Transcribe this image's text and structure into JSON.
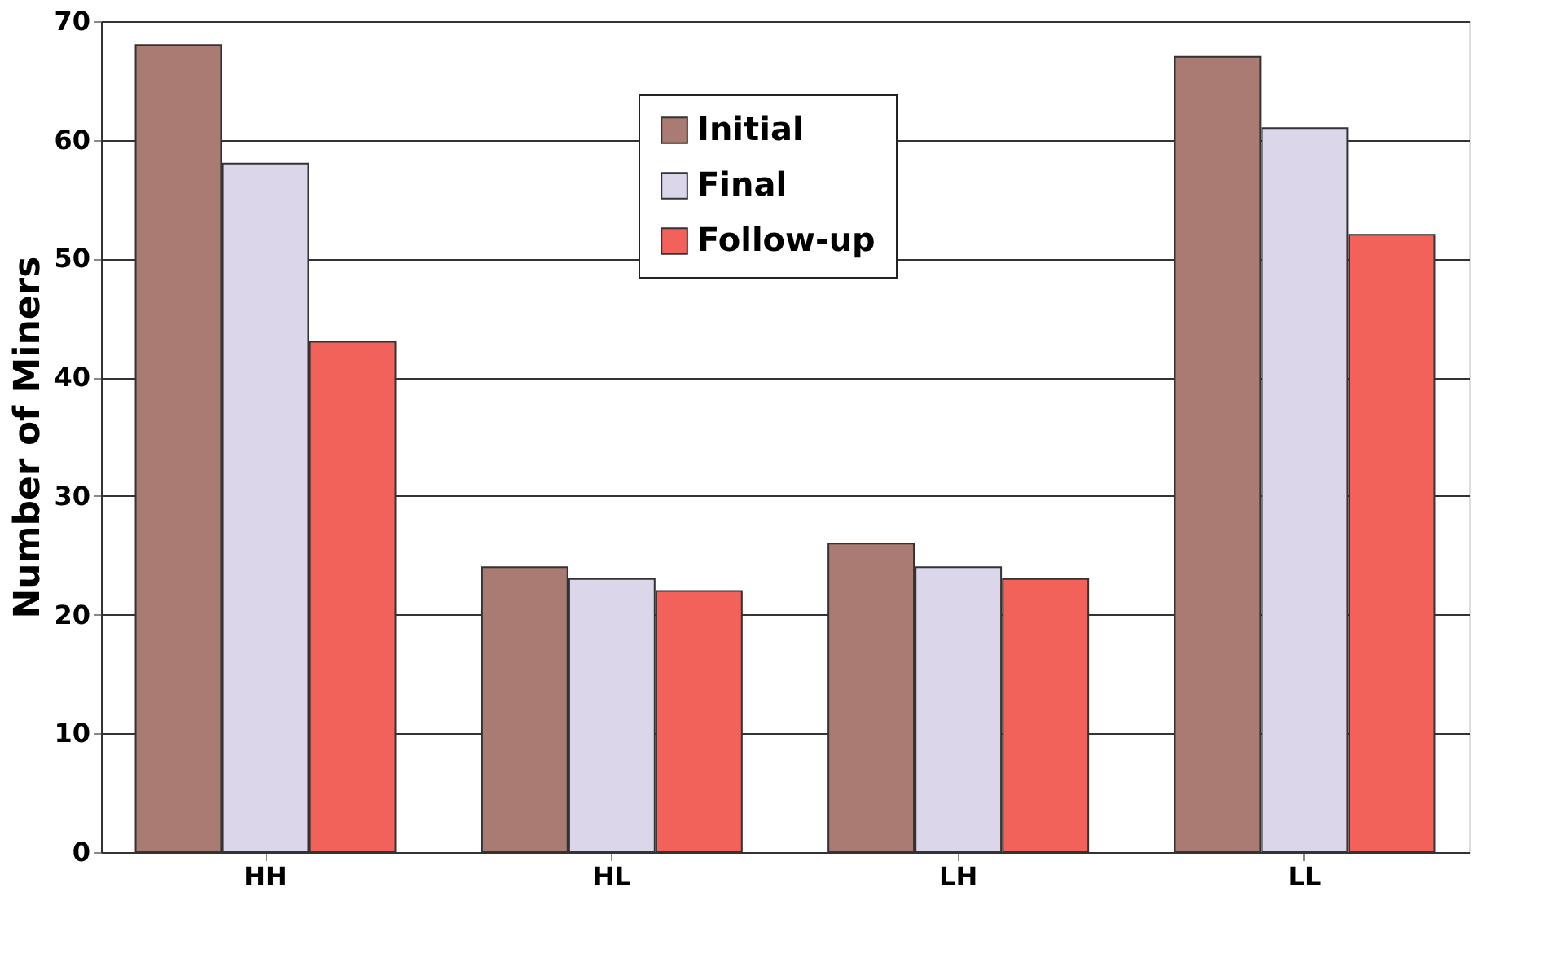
{
  "chart_data": {
    "type": "bar",
    "ylabel": "Number of Miners",
    "categories": [
      "HH",
      "HL",
      "LH",
      "LL"
    ],
    "series": [
      {
        "name": "Initial",
        "color": "#a97b72",
        "values": [
          68,
          24,
          26,
          67
        ]
      },
      {
        "name": "Final",
        "color": "#dcd6ea",
        "values": [
          58,
          23,
          24,
          61
        ]
      },
      {
        "name": "Follow-up",
        "color": "#f2625a",
        "values": [
          43,
          22,
          23,
          52
        ]
      }
    ],
    "ylim": [
      0,
      70
    ],
    "yticks": [
      0,
      10,
      20,
      30,
      40,
      50,
      60,
      70
    ],
    "grid": "y",
    "legend": "top"
  }
}
